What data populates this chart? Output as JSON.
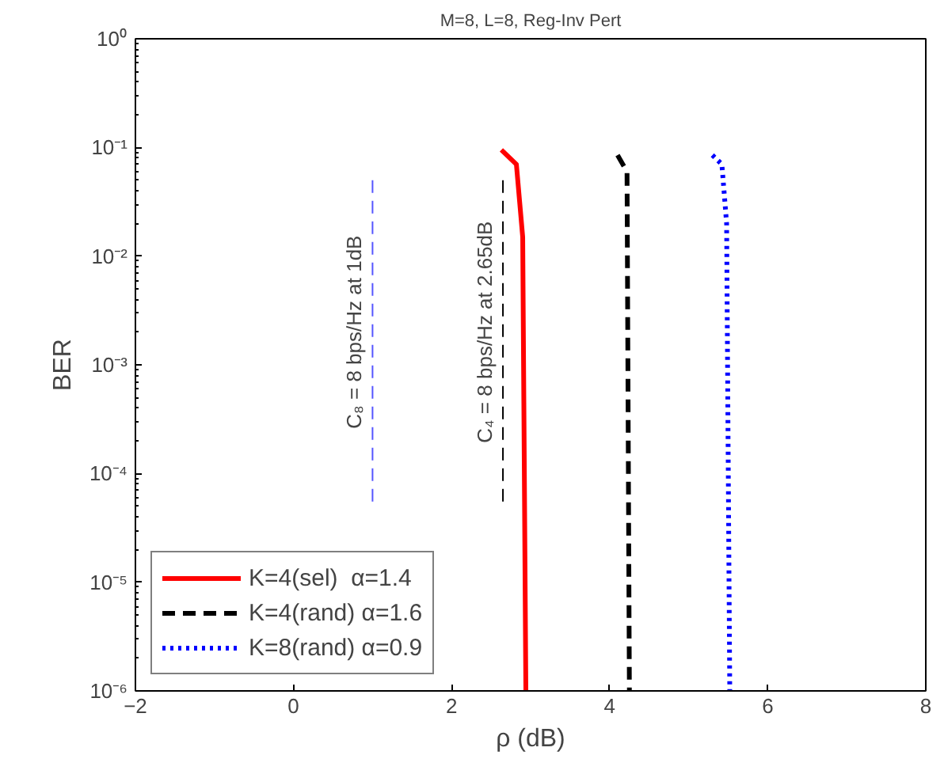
{
  "chart_data": {
    "type": "line",
    "title": "M=8, L=8, Reg-Inv Pert",
    "xlabel": "ρ (dB)",
    "ylabel": "BER",
    "xlim": [
      -2,
      8
    ],
    "xticks": [
      -2,
      0,
      2,
      4,
      6,
      8
    ],
    "ylim": [
      1e-06,
      1
    ],
    "log": "y",
    "yticks": [
      {
        "value": 1e-06,
        "label": "10⁻⁶"
      },
      {
        "value": 1e-05,
        "label": "10⁻⁵"
      },
      {
        "value": 0.0001,
        "label": "10⁻⁴"
      },
      {
        "value": 0.001,
        "label": "10⁻³"
      },
      {
        "value": 0.01,
        "label": "10⁻²"
      },
      {
        "value": 0.1,
        "label": "10⁻¹"
      },
      {
        "value": 1,
        "label": "10⁰"
      }
    ],
    "grid": false,
    "legend": "bottom left",
    "series": [
      {
        "name": "K=4(sel)  α=1.4",
        "color": "#ff0000",
        "line_style": "solid",
        "x": [
          2.63,
          2.82,
          2.9,
          2.94
        ],
        "values": [
          0.095,
          0.07,
          0.015,
          1e-06
        ]
      },
      {
        "name": "K=4(rand) α=1.6",
        "color": "#000000",
        "line_style": "dashed",
        "x": [
          4.1,
          4.22,
          4.25
        ],
        "values": [
          0.085,
          0.06,
          1e-06
        ]
      },
      {
        "name": "K=8(rand) α=0.9",
        "color": "#0000ff",
        "line_style": "dotted",
        "x": [
          5.3,
          5.42,
          5.48,
          5.52
        ],
        "values": [
          0.085,
          0.07,
          0.02,
          1e-06
        ]
      },
      {
        "color": "#5555ff",
        "line_style": "dashed",
        "x": [
          1,
          1
        ],
        "values": [
          0.05,
          5e-05
        ]
      },
      {
        "color": "#000000",
        "line_style": "dashed",
        "x": [
          2.65,
          2.65
        ],
        "values": [
          0.05,
          5e-05
        ]
      }
    ],
    "annotations": [
      {
        "text": "C₈ = 8 bps/Hz at 1dB",
        "x": 1,
        "y": 0.002
      },
      {
        "text": "C₄ = 8 bps/Hz at 2.65dB",
        "x": 2.65,
        "y": 0.002
      }
    ]
  }
}
